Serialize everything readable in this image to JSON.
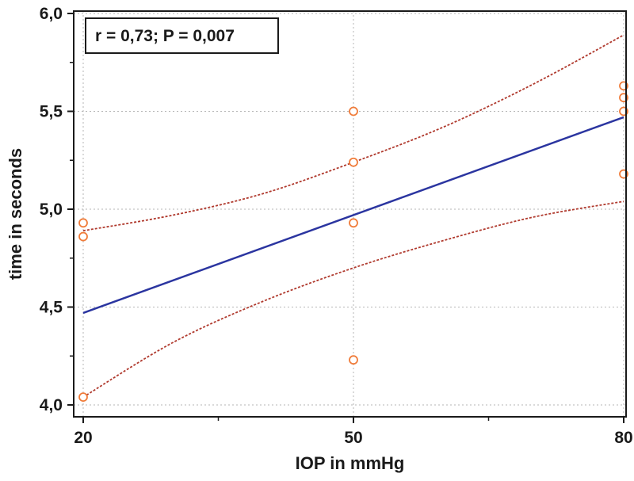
{
  "chart_data": {
    "type": "scatter",
    "title": "",
    "xlabel": "IOP in mmHg",
    "ylabel": "time in seconds",
    "xlim": [
      20,
      80
    ],
    "ylim": [
      4.0,
      6.0
    ],
    "x_ticks": [
      20,
      50,
      80
    ],
    "x_tick_labels": [
      "20",
      "50",
      "80"
    ],
    "y_ticks": [
      4.0,
      4.5,
      5.0,
      5.5,
      6.0
    ],
    "y_tick_labels": [
      "4,0",
      "4,5",
      "5,0",
      "5,5",
      "6,0"
    ],
    "grid": true,
    "annotation": "r = 0,73; P = 0,007",
    "points": [
      {
        "x": 20,
        "y": 4.93
      },
      {
        "x": 20,
        "y": 4.86
      },
      {
        "x": 20,
        "y": 4.04
      },
      {
        "x": 50,
        "y": 5.5
      },
      {
        "x": 50,
        "y": 5.24
      },
      {
        "x": 50,
        "y": 4.93
      },
      {
        "x": 50,
        "y": 4.23
      },
      {
        "x": 80,
        "y": 5.63
      },
      {
        "x": 80,
        "y": 5.57
      },
      {
        "x": 80,
        "y": 5.5
      },
      {
        "x": 80,
        "y": 5.18
      }
    ],
    "regression_line": {
      "x": [
        20,
        80
      ],
      "y": [
        4.47,
        5.47
      ]
    },
    "ci_upper": {
      "x": [
        20,
        30,
        40,
        50,
        60,
        70,
        80
      ],
      "y": [
        4.89,
        4.97,
        5.08,
        5.24,
        5.42,
        5.64,
        5.89
      ]
    },
    "ci_lower": {
      "x": [
        20,
        30,
        40,
        50,
        60,
        70,
        80
      ],
      "y": [
        4.04,
        4.32,
        4.53,
        4.7,
        4.84,
        4.96,
        5.04
      ]
    },
    "colors": {
      "points": "#f07c3a",
      "regression": "#2b35a0",
      "ci": "#b03a2e",
      "grid": "#b5b5b5",
      "axes": "#1a1a1a"
    }
  }
}
